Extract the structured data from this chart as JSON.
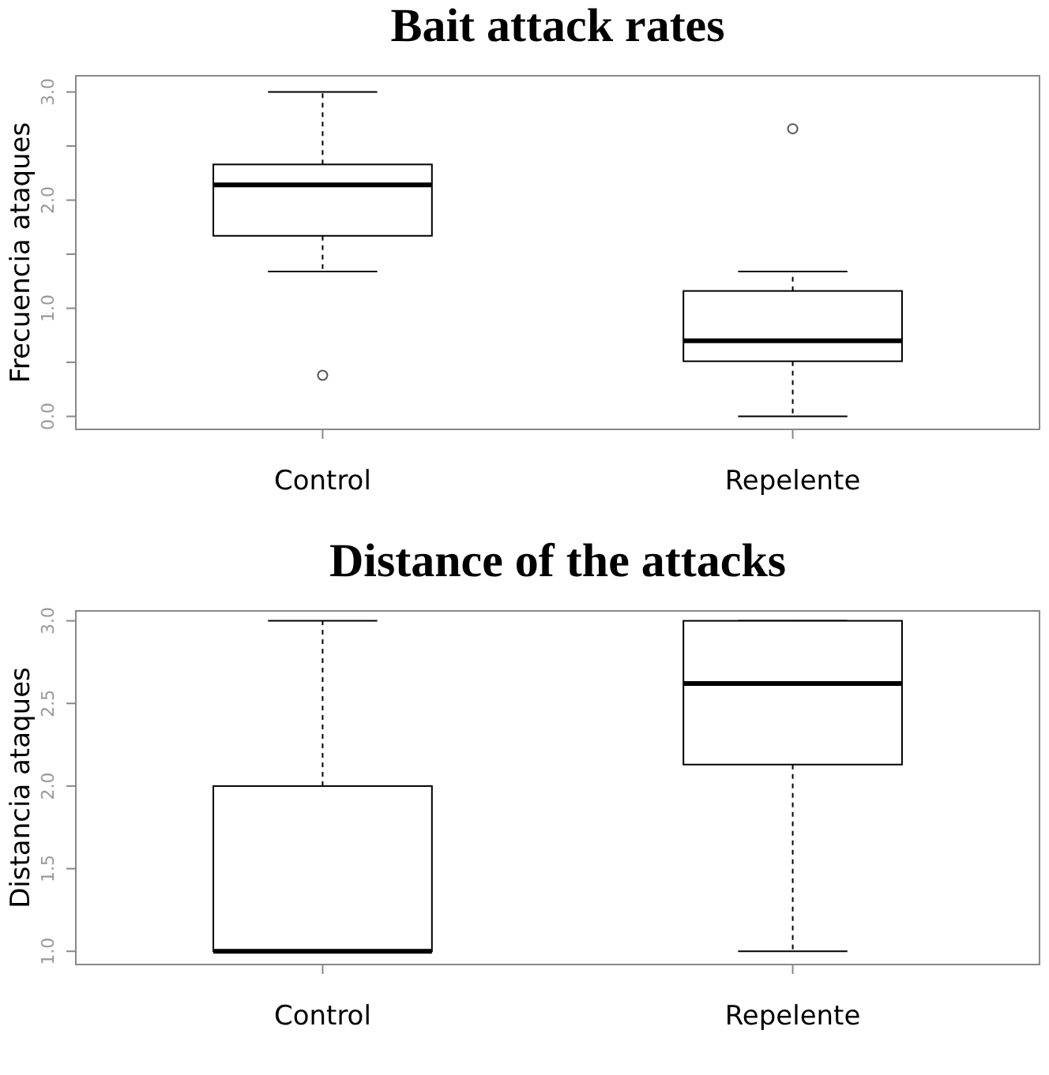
{
  "chart_data": [
    {
      "type": "box",
      "title": "Bait attack rates",
      "ylabel": "Frecuencia ataques",
      "categories": [
        "Control",
        "Repelente"
      ],
      "ylim": [
        -0.12,
        3.15
      ],
      "yticks": [
        {
          "value": 0,
          "label": "0.0"
        },
        {
          "value": 0.5,
          "label": null
        },
        {
          "value": 1,
          "label": "1.0"
        },
        {
          "value": 1.5,
          "label": null
        },
        {
          "value": 2,
          "label": "2.0"
        },
        {
          "value": 2.5,
          "label": null
        },
        {
          "value": 3,
          "label": "3.0"
        }
      ],
      "boxes": [
        {
          "low": 1.34,
          "q1": 1.67,
          "median": 2.14,
          "q3": 2.33,
          "high": 3.0,
          "outliers": [
            0.38
          ]
        },
        {
          "low": 0.0,
          "q1": 0.51,
          "median": 0.7,
          "q3": 1.16,
          "high": 1.34,
          "outliers": [
            2.66
          ]
        }
      ]
    },
    {
      "type": "box",
      "title": "Distance of the attacks",
      "ylabel": "Distancia ataques",
      "categories": [
        "Control",
        "Repelente"
      ],
      "ylim": [
        0.92,
        3.06
      ],
      "yticks": [
        {
          "value": 1,
          "label": "1.0"
        },
        {
          "value": 1.5,
          "label": "1.5"
        },
        {
          "value": 2,
          "label": "2.0"
        },
        {
          "value": 2.5,
          "label": "2.5"
        },
        {
          "value": 3,
          "label": "3.0"
        }
      ],
      "boxes": [
        {
          "low": 1.0,
          "q1": 1.0,
          "median": 1.0,
          "q3": 2.0,
          "high": 3.0
        },
        {
          "low": 1.0,
          "q1": 2.13,
          "median": 2.62,
          "q3": 3.0,
          "high": 3.0
        }
      ]
    }
  ]
}
